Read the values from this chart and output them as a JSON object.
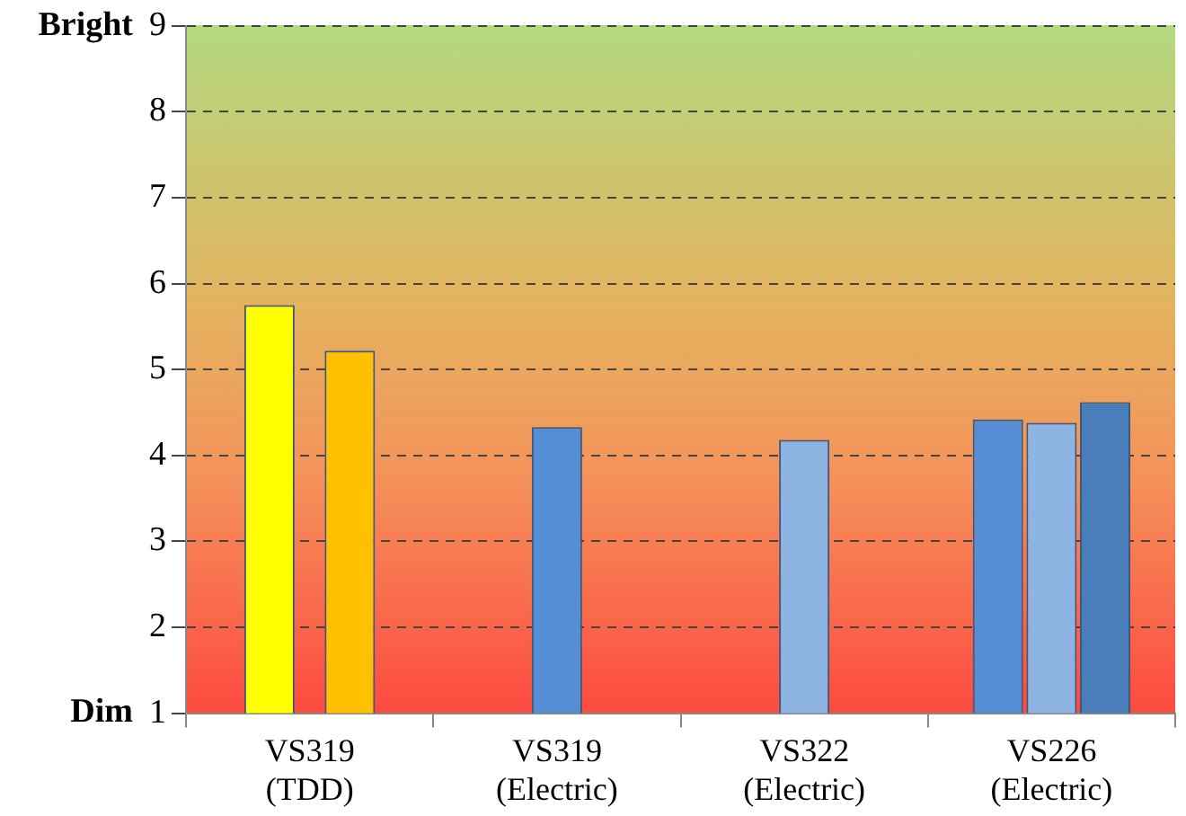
{
  "chart_data": {
    "type": "bar",
    "categories": [
      "VS319 (TDD)",
      "VS319 (Electric)",
      "VS322 (Electric)",
      "VS226 (Electric)"
    ],
    "series": [
      {
        "colors": [
          "#ffff00",
          "#558ed5",
          "#8eb4e3",
          "#558ed5"
        ],
        "values": [
          5.75,
          4.33,
          4.18,
          4.42
        ]
      },
      {
        "colors": [
          "#ffc000",
          null,
          null,
          "#8eb4e3"
        ],
        "values": [
          5.22,
          null,
          null,
          4.38
        ]
      },
      {
        "colors": [
          null,
          null,
          null,
          "#4a7ebb"
        ],
        "values": [
          null,
          null,
          null,
          4.62
        ]
      }
    ],
    "ylim": [
      1,
      9
    ],
    "yticks": [
      1,
      2,
      3,
      4,
      5,
      6,
      7,
      8,
      9
    ],
    "grid": "y",
    "legend": false,
    "annotations": [
      "Bright",
      "Dim"
    ]
  }
}
